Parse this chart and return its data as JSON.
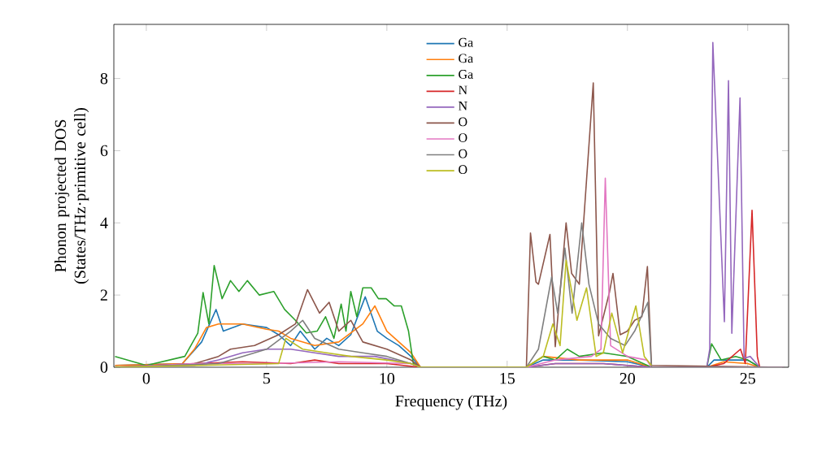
{
  "chart_data": {
    "type": "line",
    "xlabel": "Frequency (THz)",
    "ylabel": "Phonon projected DOS (States/THz·primitive cell)",
    "xlim": [
      -1.35,
      26.7
    ],
    "ylim": [
      0,
      9.5
    ],
    "xticks": [
      0,
      5,
      10,
      15,
      20,
      25
    ],
    "yticks": [
      0,
      2,
      4,
      6,
      8
    ],
    "legend": "top",
    "grid": false,
    "series": [
      {
        "name": "Ga",
        "color": "#1f77b4",
        "x": [
          -1.3,
          1.5,
          2.3,
          2.9,
          3.2,
          4.0,
          5.0,
          5.5,
          6.0,
          6.4,
          7.0,
          7.5,
          8.0,
          8.5,
          9.1,
          9.6,
          10.0,
          10.5,
          11.0,
          11.4,
          15.8,
          16.5,
          18.0,
          20.0,
          21.0,
          23.3,
          23.6,
          25.0,
          25.5,
          26.5
        ],
        "values": [
          0.05,
          0.1,
          0.7,
          1.6,
          1.0,
          1.2,
          1.1,
          0.9,
          0.6,
          1.0,
          0.5,
          0.8,
          0.6,
          0.9,
          1.95,
          1.0,
          0.8,
          0.6,
          0.3,
          0,
          0,
          0.2,
          0.2,
          0.15,
          0,
          0,
          0.2,
          0.2,
          0,
          0
        ]
      },
      {
        "name": "Ga",
        "color": "#ff7f0e",
        "x": [
          -1.3,
          1.5,
          2.0,
          2.5,
          3.0,
          4.0,
          5.0,
          5.5,
          6.0,
          7.0,
          8.0,
          9.0,
          9.5,
          10.0,
          10.5,
          11.0,
          11.4,
          15.8,
          16.5,
          18.0,
          20.0,
          21.0,
          23.3,
          24.0,
          25.0,
          25.5,
          26.5
        ],
        "values": [
          0.05,
          0.1,
          0.5,
          1.1,
          1.2,
          1.2,
          1.05,
          1.0,
          0.8,
          0.6,
          0.7,
          1.2,
          1.7,
          1.0,
          0.7,
          0.4,
          0,
          0,
          0.3,
          0.2,
          0.2,
          0,
          0,
          0.15,
          0.1,
          0,
          0
        ]
      },
      {
        "name": "Ga",
        "color": "#2ca02c",
        "x": [
          -1.3,
          0.0,
          1.6,
          2.14,
          2.36,
          2.6,
          2.82,
          3.15,
          3.5,
          3.85,
          4.2,
          4.7,
          5.3,
          5.75,
          6.2,
          6.65,
          7.1,
          7.45,
          7.8,
          8.1,
          8.3,
          8.5,
          8.75,
          9.0,
          9.35,
          9.65,
          9.97,
          10.3,
          10.6,
          10.9,
          11.1,
          11.4,
          15.8,
          16.5,
          17.0,
          17.5,
          18.0,
          19.0,
          20.0,
          21.0,
          23.3,
          23.5,
          23.9,
          24.5,
          25.0,
          25.5,
          26.5
        ],
        "values": [
          0.3,
          0.05,
          0.3,
          0.94,
          2.07,
          1.2,
          2.82,
          1.9,
          2.4,
          2.1,
          2.4,
          2.0,
          2.1,
          1.6,
          1.3,
          0.95,
          1.0,
          1.4,
          0.8,
          1.75,
          1.0,
          2.1,
          1.4,
          2.2,
          2.2,
          1.9,
          1.9,
          1.7,
          1.7,
          1.0,
          0.1,
          0,
          0,
          0.3,
          0.2,
          0.5,
          0.3,
          0.4,
          0.3,
          0,
          0,
          0.65,
          0.2,
          0.3,
          0.2,
          0,
          0
        ]
      },
      {
        "name": "N",
        "color": "#d62728",
        "x": [
          -1.3,
          2.0,
          4.0,
          6.0,
          7.0,
          8.0,
          10.0,
          11.4,
          15.8,
          17.0,
          19.0,
          21.0,
          23.3,
          24.0,
          24.7,
          24.9,
          25.18,
          25.4,
          25.5,
          26.5
        ],
        "values": [
          0,
          0.1,
          0.15,
          0.1,
          0.2,
          0.1,
          0.1,
          0,
          0,
          0.1,
          0.1,
          0,
          0,
          0.1,
          0.5,
          0.1,
          4.35,
          0.3,
          0,
          0
        ]
      },
      {
        "name": "N",
        "color": "#9467bd",
        "x": [
          -1.3,
          2.0,
          3.0,
          4.0,
          5.0,
          6.0,
          7.0,
          8.0,
          9.5,
          11.0,
          11.4,
          15.8,
          17.0,
          19.0,
          21.0,
          23.3,
          23.42,
          23.55,
          24.03,
          24.2,
          24.34,
          24.68,
          24.85,
          25.1,
          25.5,
          26.5
        ],
        "values": [
          0,
          0.05,
          0.2,
          0.4,
          0.5,
          0.5,
          0.4,
          0.3,
          0.3,
          0.1,
          0,
          0,
          0.1,
          0.1,
          0,
          0,
          0.5,
          9.0,
          1.26,
          7.94,
          0.94,
          7.46,
          0.25,
          0.3,
          0,
          0
        ]
      },
      {
        "name": "O",
        "color": "#8c564b",
        "x": [
          -1.3,
          2.0,
          3.0,
          3.5,
          4.5,
          5.5,
          6.2,
          6.7,
          7.2,
          7.6,
          8.0,
          8.5,
          9.0,
          10.0,
          11.0,
          11.4,
          15.8,
          15.97,
          16.2,
          16.3,
          16.78,
          17.0,
          17.45,
          17.68,
          18.0,
          18.58,
          18.8,
          19.25,
          19.4,
          19.7,
          20.0,
          20.3,
          20.6,
          20.83,
          21.0,
          26.5
        ],
        "values": [
          0,
          0.1,
          0.3,
          0.5,
          0.6,
          0.9,
          1.2,
          2.15,
          1.5,
          1.8,
          1.0,
          1.3,
          0.7,
          0.5,
          0.2,
          0,
          0,
          3.72,
          2.36,
          2.3,
          3.68,
          0.57,
          4.0,
          2.6,
          2.3,
          7.88,
          0.87,
          2.07,
          2.6,
          0.9,
          1.0,
          1.3,
          1.4,
          2.79,
          0.05,
          0
        ]
      },
      {
        "name": "O",
        "color": "#e377c2",
        "x": [
          -1.3,
          2.0,
          5.0,
          8.0,
          11.0,
          11.4,
          15.8,
          17.0,
          18.5,
          18.9,
          19.08,
          19.3,
          20.0,
          20.8,
          21.0,
          26.5
        ],
        "values": [
          0,
          0.1,
          0.1,
          0.15,
          0.1,
          0,
          0,
          0.2,
          0.3,
          0.5,
          5.24,
          0.6,
          0.3,
          0.2,
          0,
          0
        ]
      },
      {
        "name": "O",
        "color": "#7f7f7f",
        "x": [
          -1.3,
          3.0,
          4.0,
          5.0,
          6.0,
          6.5,
          7.0,
          8.0,
          9.0,
          10.0,
          11.0,
          11.4,
          15.8,
          16.3,
          16.85,
          17.1,
          17.4,
          17.7,
          18.1,
          18.4,
          18.8,
          19.3,
          19.9,
          20.3,
          20.85,
          21.0,
          26.5
        ],
        "values": [
          0,
          0.1,
          0.3,
          0.5,
          1.0,
          1.3,
          0.8,
          0.5,
          0.4,
          0.3,
          0.1,
          0,
          0,
          0.5,
          2.5,
          1.5,
          3.3,
          1.5,
          4.0,
          2.3,
          1.2,
          0.8,
          0.6,
          1.0,
          1.8,
          0,
          0
        ]
      },
      {
        "name": "O",
        "color": "#bcbd22",
        "x": [
          -1.3,
          5.5,
          5.8,
          6.5,
          7.5,
          8.5,
          10.0,
          11.0,
          11.4,
          15.8,
          16.5,
          16.9,
          17.2,
          17.45,
          17.9,
          18.3,
          18.7,
          19.0,
          19.35,
          19.8,
          20.35,
          20.7,
          21.0
        ],
        "values": [
          0,
          0.1,
          0.8,
          0.5,
          0.4,
          0.3,
          0.2,
          0.1,
          0,
          0,
          0.3,
          1.2,
          0.6,
          2.97,
          1.3,
          2.2,
          0.3,
          0.4,
          1.5,
          0.4,
          1.7,
          0.3,
          0.05
        ]
      }
    ]
  }
}
